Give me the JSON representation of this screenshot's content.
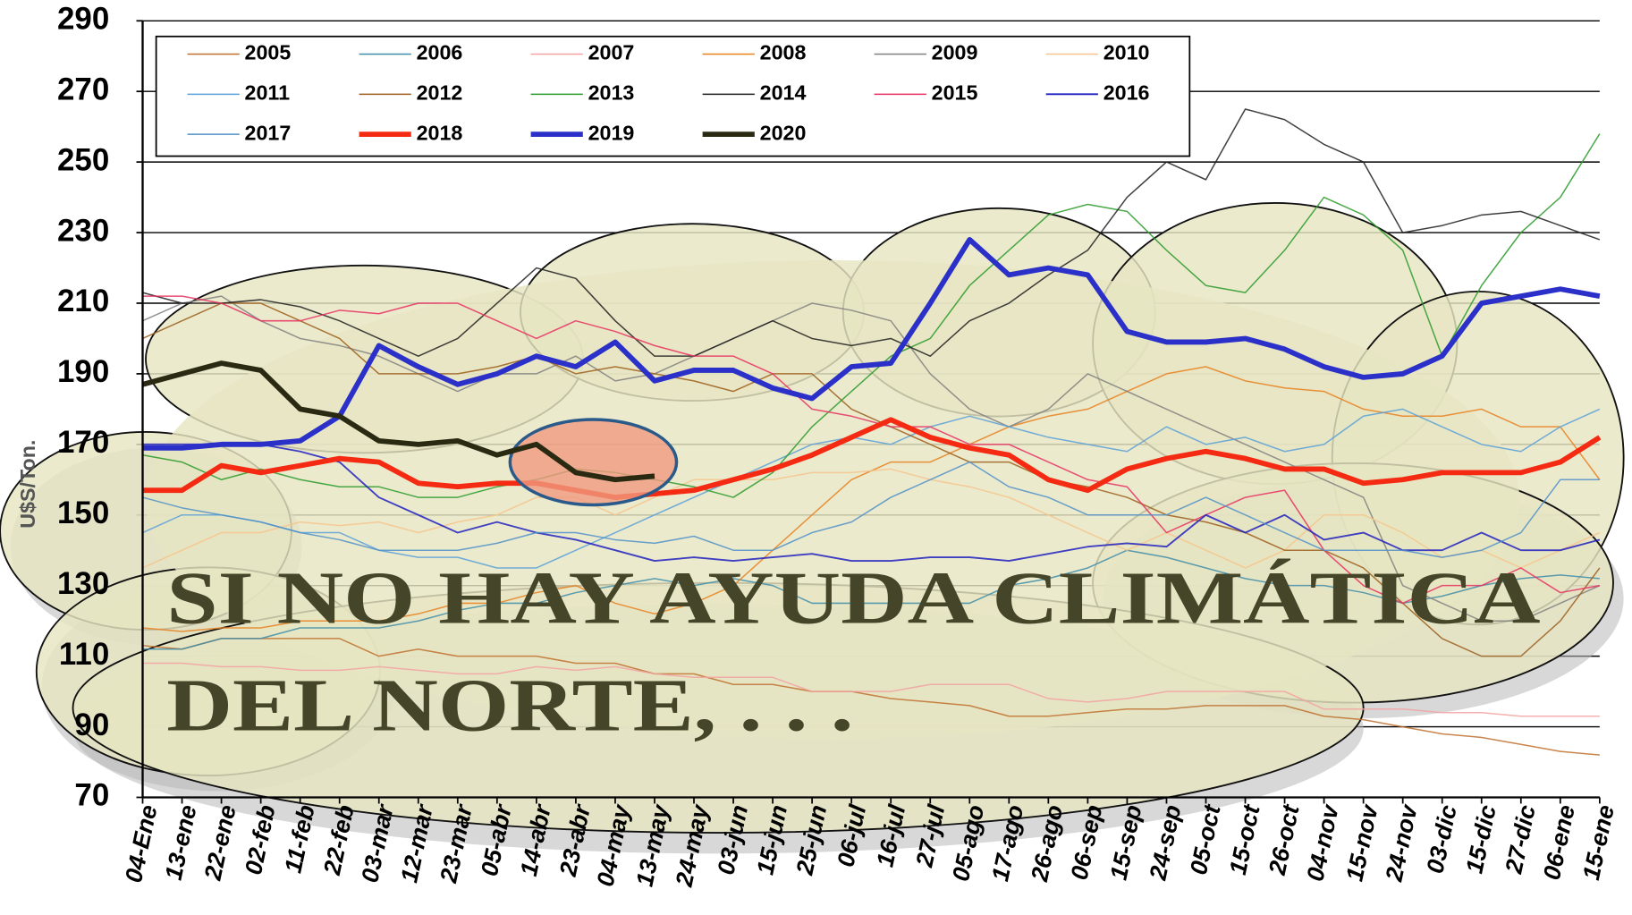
{
  "chart_data": {
    "type": "line",
    "ylabel": "U$S/Ton.",
    "annotation": [
      "SI NO HAY AYUDA CLIMÁTICA",
      "DEL NORTE, . . ."
    ],
    "categories": [
      "04-Ene",
      "13-ene",
      "22-ene",
      "02-feb",
      "11-feb",
      "22-feb",
      "03-mar",
      "12-mar",
      "23-mar",
      "05-abr",
      "14-abr",
      "23-abr",
      "04-may",
      "13-may",
      "24-may",
      "03-jun",
      "15-jun",
      "25-jun",
      "06-jul",
      "16-jul",
      "27-jul",
      "05-ago",
      "17-ago",
      "26-ago",
      "06-sep",
      "15-sep",
      "24-sep",
      "05-oct",
      "15-oct",
      "26-oct",
      "04-nov",
      "15-nov",
      "24-nov",
      "03-dic",
      "15-dic",
      "27-dic",
      "06-ene",
      "15-ene"
    ],
    "ylim": [
      70,
      290
    ],
    "yticks": [
      70,
      90,
      110,
      130,
      150,
      170,
      190,
      210,
      230,
      250,
      270,
      290
    ],
    "grid": true,
    "series": [
      {
        "name": "2005",
        "color": "#c0702e",
        "width": 1.3,
        "values": [
          113,
          112,
          115,
          115,
          115,
          115,
          110,
          112,
          110,
          110,
          110,
          108,
          108,
          105,
          105,
          102,
          102,
          100,
          100,
          98,
          97,
          96,
          93,
          93,
          94,
          95,
          95,
          96,
          96,
          96,
          93,
          92,
          90,
          88,
          87,
          85,
          83,
          82
        ]
      },
      {
        "name": "2006",
        "color": "#3f8da8",
        "width": 1.3,
        "values": [
          112,
          112,
          115,
          115,
          118,
          118,
          118,
          120,
          123,
          125,
          125,
          128,
          130,
          132,
          130,
          132,
          130,
          125,
          125,
          125,
          125,
          125,
          130,
          132,
          135,
          140,
          138,
          135,
          132,
          130,
          130,
          128,
          125,
          127,
          130,
          132,
          133,
          132
        ]
      },
      {
        "name": "2007",
        "color": "#f2a2a2",
        "width": 1.3,
        "values": [
          108,
          108,
          107,
          107,
          106,
          106,
          107,
          106,
          105,
          105,
          107,
          106,
          107,
          105,
          104,
          104,
          104,
          100,
          100,
          100,
          102,
          102,
          102,
          98,
          97,
          98,
          100,
          100,
          100,
          100,
          95,
          95,
          95,
          94,
          94,
          93,
          93,
          93
        ]
      },
      {
        "name": "2008",
        "color": "#e8801e",
        "width": 1.3,
        "values": [
          118,
          117,
          118,
          118,
          120,
          120,
          120,
          122,
          125,
          125,
          128,
          130,
          125,
          122,
          125,
          130,
          140,
          150,
          160,
          165,
          165,
          170,
          175,
          178,
          180,
          185,
          190,
          192,
          188,
          186,
          185,
          180,
          178,
          178,
          180,
          175,
          175,
          160
        ]
      },
      {
        "name": "2009",
        "color": "#808080",
        "width": 1.3,
        "values": [
          205,
          210,
          212,
          205,
          200,
          198,
          195,
          190,
          185,
          190,
          190,
          195,
          188,
          190,
          195,
          200,
          205,
          210,
          208,
          205,
          190,
          180,
          175,
          180,
          190,
          185,
          180,
          175,
          170,
          165,
          160,
          155,
          130,
          125,
          120,
          120,
          125,
          130
        ]
      },
      {
        "name": "2010",
        "color": "#f6c48c",
        "width": 1.3,
        "values": [
          135,
          140,
          145,
          145,
          148,
          147,
          148,
          145,
          148,
          150,
          155,
          155,
          150,
          155,
          160,
          160,
          160,
          162,
          162,
          163,
          160,
          158,
          155,
          150,
          145,
          140,
          145,
          140,
          135,
          140,
          150,
          150,
          145,
          138,
          140,
          135,
          140,
          145
        ]
      },
      {
        "name": "2011",
        "color": "#5ba0d8",
        "width": 1.3,
        "values": [
          145,
          150,
          150,
          148,
          145,
          145,
          140,
          138,
          138,
          135,
          135,
          140,
          145,
          150,
          155,
          160,
          165,
          170,
          172,
          170,
          175,
          178,
          175,
          172,
          170,
          168,
          175,
          170,
          172,
          168,
          170,
          178,
          180,
          175,
          170,
          168,
          175,
          180
        ]
      },
      {
        "name": "2012",
        "color": "#9c5e1c",
        "width": 1.3,
        "values": [
          200,
          205,
          210,
          210,
          205,
          200,
          190,
          190,
          190,
          192,
          195,
          190,
          192,
          190,
          188,
          185,
          190,
          190,
          180,
          175,
          170,
          165,
          165,
          160,
          158,
          155,
          150,
          148,
          145,
          140,
          140,
          135,
          125,
          115,
          110,
          110,
          120,
          135
        ]
      },
      {
        "name": "2013",
        "color": "#2a9a2a",
        "width": 1.3,
        "values": [
          167,
          165,
          160,
          163,
          160,
          158,
          158,
          155,
          155,
          158,
          160,
          163,
          162,
          160,
          158,
          155,
          162,
          175,
          185,
          195,
          200,
          215,
          225,
          235,
          238,
          236,
          225,
          215,
          213,
          225,
          240,
          235,
          225,
          195,
          215,
          230,
          240,
          258
        ]
      },
      {
        "name": "2014",
        "color": "#1e1e1e",
        "width": 1.3,
        "values": [
          213,
          210,
          210,
          211,
          209,
          205,
          200,
          195,
          200,
          210,
          220,
          217,
          205,
          195,
          195,
          200,
          205,
          200,
          198,
          200,
          195,
          205,
          210,
          218,
          225,
          240,
          250,
          245,
          265,
          262,
          255,
          250,
          230,
          232,
          235,
          236,
          232,
          228
        ]
      },
      {
        "name": "2015",
        "color": "#e83060",
        "width": 1.3,
        "values": [
          212,
          212,
          210,
          205,
          205,
          208,
          207,
          210,
          210,
          205,
          200,
          205,
          202,
          198,
          195,
          195,
          190,
          180,
          178,
          175,
          175,
          170,
          170,
          165,
          160,
          158,
          145,
          150,
          155,
          157,
          140,
          130,
          125,
          130,
          130,
          135,
          128,
          130
        ]
      },
      {
        "name": "2016",
        "color": "#2020c0",
        "width": 1.6,
        "values": [
          170,
          170,
          170,
          170,
          168,
          165,
          155,
          150,
          145,
          148,
          145,
          143,
          140,
          137,
          138,
          137,
          138,
          139,
          137,
          137,
          138,
          138,
          137,
          139,
          141,
          142,
          141,
          150,
          145,
          150,
          143,
          145,
          140,
          140,
          145,
          140,
          140,
          143
        ]
      },
      {
        "name": "2017",
        "color": "#5090c8",
        "width": 1.3,
        "values": [
          155,
          152,
          150,
          148,
          145,
          143,
          140,
          140,
          140,
          142,
          145,
          145,
          143,
          142,
          144,
          140,
          140,
          145,
          148,
          155,
          160,
          165,
          158,
          155,
          150,
          150,
          150,
          155,
          150,
          145,
          140,
          140,
          140,
          138,
          140,
          145,
          160,
          160
        ]
      },
      {
        "name": "2018",
        "color": "#f52a12",
        "width": 5,
        "values": [
          157,
          157,
          164,
          162,
          164,
          166,
          165,
          159,
          158,
          159,
          159,
          157,
          155,
          156,
          157,
          160,
          163,
          167,
          172,
          177,
          172,
          169,
          167,
          160,
          157,
          163,
          166,
          168,
          166,
          163,
          163,
          159,
          160,
          162,
          162,
          162,
          165,
          172
        ]
      },
      {
        "name": "2019",
        "color": "#2a30c8",
        "width": 5,
        "values": [
          169,
          169,
          170,
          170,
          171,
          178,
          198,
          192,
          187,
          190,
          195,
          192,
          199,
          188,
          191,
          191,
          186,
          183,
          192,
          193,
          210,
          228,
          218,
          220,
          218,
          202,
          199,
          199,
          200,
          197,
          192,
          189,
          190,
          195,
          210,
          212,
          214,
          212
        ]
      },
      {
        "name": "2020",
        "color": "#2a2a12",
        "width": 5,
        "values": [
          187,
          190,
          193,
          191,
          180,
          178,
          171,
          170,
          171,
          167,
          170,
          162,
          160,
          161,
          null,
          null,
          null,
          null,
          null,
          null,
          null,
          null,
          null,
          null,
          null,
          null,
          null,
          null,
          null,
          null,
          null,
          null,
          null,
          null,
          null,
          null,
          null,
          null
        ]
      }
    ]
  }
}
